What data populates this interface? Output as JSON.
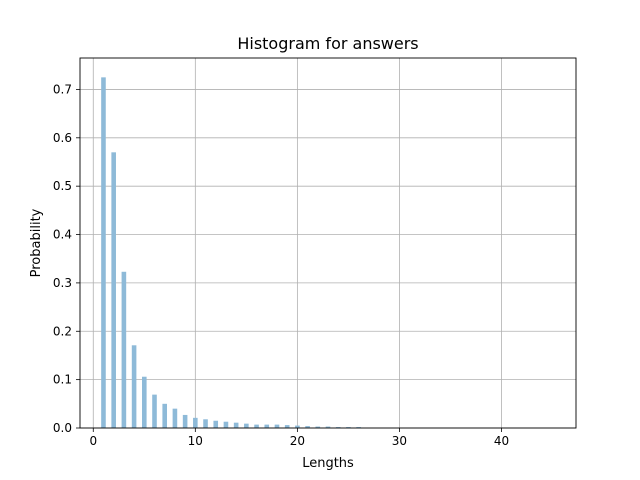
{
  "chart_data": {
    "type": "bar",
    "title": "Histogram for answers",
    "xlabel": "Lengths",
    "ylabel": "Probability",
    "xlim": [
      -1.3,
      47.3
    ],
    "ylim": [
      0,
      0.765
    ],
    "xticks": [
      0,
      10,
      20,
      30,
      40
    ],
    "yticks": [
      0.0,
      0.1,
      0.2,
      0.3,
      0.4,
      0.5,
      0.6,
      0.7
    ],
    "xtick_labels": [
      "0",
      "10",
      "20",
      "30",
      "40"
    ],
    "ytick_labels": [
      "0.0",
      "0.1",
      "0.2",
      "0.3",
      "0.4",
      "0.5",
      "0.6",
      "0.7"
    ],
    "grid": true,
    "bar_color": "#8ebad8",
    "bar_width": 0.45,
    "x": [
      1,
      2,
      3,
      4,
      5,
      6,
      7,
      8,
      9,
      10,
      11,
      12,
      13,
      14,
      15,
      16,
      17,
      18,
      19,
      20,
      21,
      22,
      23,
      24,
      25,
      26
    ],
    "values": [
      0.725,
      0.57,
      0.323,
      0.171,
      0.106,
      0.069,
      0.05,
      0.04,
      0.027,
      0.021,
      0.018,
      0.015,
      0.013,
      0.011,
      0.009,
      0.007,
      0.007,
      0.007,
      0.006,
      0.005,
      0.004,
      0.003,
      0.003,
      0.002,
      0.002,
      0.002
    ]
  }
}
